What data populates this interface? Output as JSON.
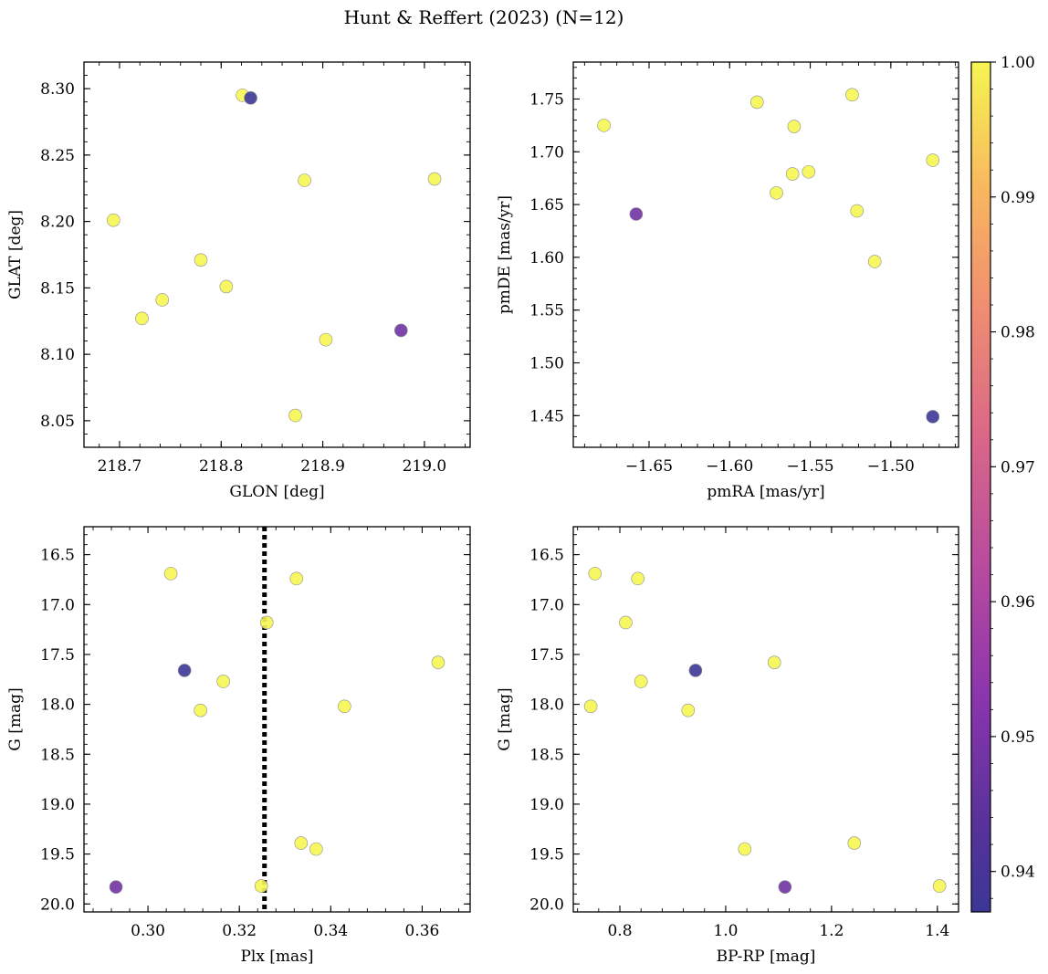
{
  "title": "Hunt & Reffert (2023) (N=12)",
  "colorbar": {
    "colormap": "plasma",
    "range": [
      0.937,
      1.0
    ],
    "ticks": [
      0.94,
      0.95,
      0.96,
      0.97,
      0.98,
      0.99,
      1.0
    ],
    "tick_labels": [
      "0.94",
      "0.95",
      "0.96",
      "0.97",
      "0.98",
      "0.99",
      "1.00"
    ]
  },
  "chart_data": [
    {
      "type": "scatter",
      "xlabel": "GLON [deg]",
      "ylabel": "GLAT [deg]",
      "xlim": [
        218.665,
        219.045
      ],
      "ylim": [
        8.03,
        8.32
      ],
      "y_inverted": false,
      "xticks": [
        218.7,
        218.8,
        218.9,
        219.0
      ],
      "xtick_labels": [
        "218.7",
        "218.8",
        "218.9",
        "219.0"
      ],
      "yticks": [
        8.05,
        8.1,
        8.15,
        8.2,
        8.25,
        8.3
      ],
      "ytick_labels": [
        "8.05",
        "8.10",
        "8.15",
        "8.20",
        "8.25",
        "8.30"
      ],
      "x": [
        218.694,
        218.722,
        218.742,
        218.78,
        218.805,
        218.821,
        218.829,
        218.873,
        218.882,
        218.903,
        218.977,
        219.01
      ],
      "y": [
        8.201,
        8.127,
        8.141,
        8.171,
        8.151,
        8.295,
        8.293,
        8.054,
        8.231,
        8.111,
        8.118,
        8.232
      ],
      "probability": [
        1.0,
        1.0,
        1.0,
        1.0,
        1.0,
        1.0,
        0.937,
        1.0,
        1.0,
        1.0,
        0.948,
        1.0
      ]
    },
    {
      "type": "scatter",
      "xlabel": "pmRA [mas/yr]",
      "ylabel": "pmDE [mas/yr]",
      "xlim": [
        -1.697,
        -1.458
      ],
      "ylim": [
        1.42,
        1.785
      ],
      "y_inverted": false,
      "xticks": [
        -1.65,
        -1.6,
        -1.55,
        -1.5
      ],
      "xtick_labels": [
        "−1.65",
        "−1.60",
        "−1.55",
        "−1.50"
      ],
      "yticks": [
        1.45,
        1.5,
        1.55,
        1.6,
        1.65,
        1.7,
        1.75
      ],
      "ytick_labels": [
        "1.45",
        "1.50",
        "1.55",
        "1.60",
        "1.65",
        "1.70",
        "1.75"
      ],
      "x": [
        -1.678,
        -1.583,
        -1.56,
        -1.561,
        -1.571,
        -1.551,
        -1.524,
        -1.521,
        -1.51,
        -1.474,
        -1.658,
        -1.474
      ],
      "y": [
        1.725,
        1.747,
        1.724,
        1.679,
        1.661,
        1.681,
        1.754,
        1.644,
        1.596,
        1.692,
        1.641,
        1.449
      ],
      "probability": [
        1.0,
        1.0,
        1.0,
        1.0,
        1.0,
        1.0,
        1.0,
        1.0,
        1.0,
        1.0,
        0.948,
        0.937
      ]
    },
    {
      "type": "scatter",
      "xlabel": "Plx [mas]",
      "ylabel": "G [mag]",
      "xlim": [
        0.286,
        0.3705
      ],
      "ylim": [
        20.08,
        16.22
      ],
      "y_inverted": true,
      "vline": {
        "x": 0.3255,
        "style": "dotted",
        "color": "#000000"
      },
      "xticks": [
        0.3,
        0.32,
        0.34,
        0.36
      ],
      "xtick_labels": [
        "0.30",
        "0.32",
        "0.34",
        "0.36"
      ],
      "yticks": [
        16.5,
        17.0,
        17.5,
        18.0,
        18.5,
        19.0,
        19.5,
        20.0
      ],
      "ytick_labels": [
        "16.5",
        "17.0",
        "17.5",
        "18.0",
        "18.5",
        "19.0",
        "19.5",
        "20.0"
      ],
      "x": [
        0.305,
        0.3325,
        0.326,
        0.308,
        0.3165,
        0.3115,
        0.343,
        0.3635,
        0.3335,
        0.3368,
        0.293,
        0.3248
      ],
      "y": [
        16.69,
        16.74,
        17.18,
        17.66,
        17.77,
        18.06,
        18.02,
        17.58,
        19.39,
        19.45,
        19.83,
        19.82
      ],
      "probability": [
        1.0,
        1.0,
        1.0,
        0.937,
        1.0,
        1.0,
        1.0,
        1.0,
        1.0,
        1.0,
        0.948,
        1.0
      ]
    },
    {
      "type": "scatter",
      "xlabel": "BP-RP [mag]",
      "ylabel": "G [mag]",
      "xlim": [
        0.712,
        1.44
      ],
      "ylim": [
        20.08,
        16.22
      ],
      "y_inverted": true,
      "xticks": [
        0.8,
        1.0,
        1.2,
        1.4
      ],
      "xtick_labels": [
        "0.8",
        "1.0",
        "1.2",
        "1.4"
      ],
      "yticks": [
        16.5,
        17.0,
        17.5,
        18.0,
        18.5,
        19.0,
        19.5,
        20.0
      ],
      "ytick_labels": [
        "16.5",
        "17.0",
        "17.5",
        "18.0",
        "18.5",
        "19.0",
        "19.5",
        "20.0"
      ],
      "x": [
        0.753,
        0.834,
        0.811,
        0.943,
        0.84,
        0.929,
        0.745,
        1.092,
        1.243,
        1.036,
        1.112,
        1.404
      ],
      "y": [
        16.69,
        16.74,
        17.18,
        17.66,
        17.77,
        18.06,
        18.02,
        17.58,
        19.39,
        19.45,
        19.83,
        19.82
      ],
      "probability": [
        1.0,
        1.0,
        1.0,
        0.937,
        1.0,
        1.0,
        1.0,
        1.0,
        1.0,
        1.0,
        0.948,
        1.0
      ]
    }
  ]
}
